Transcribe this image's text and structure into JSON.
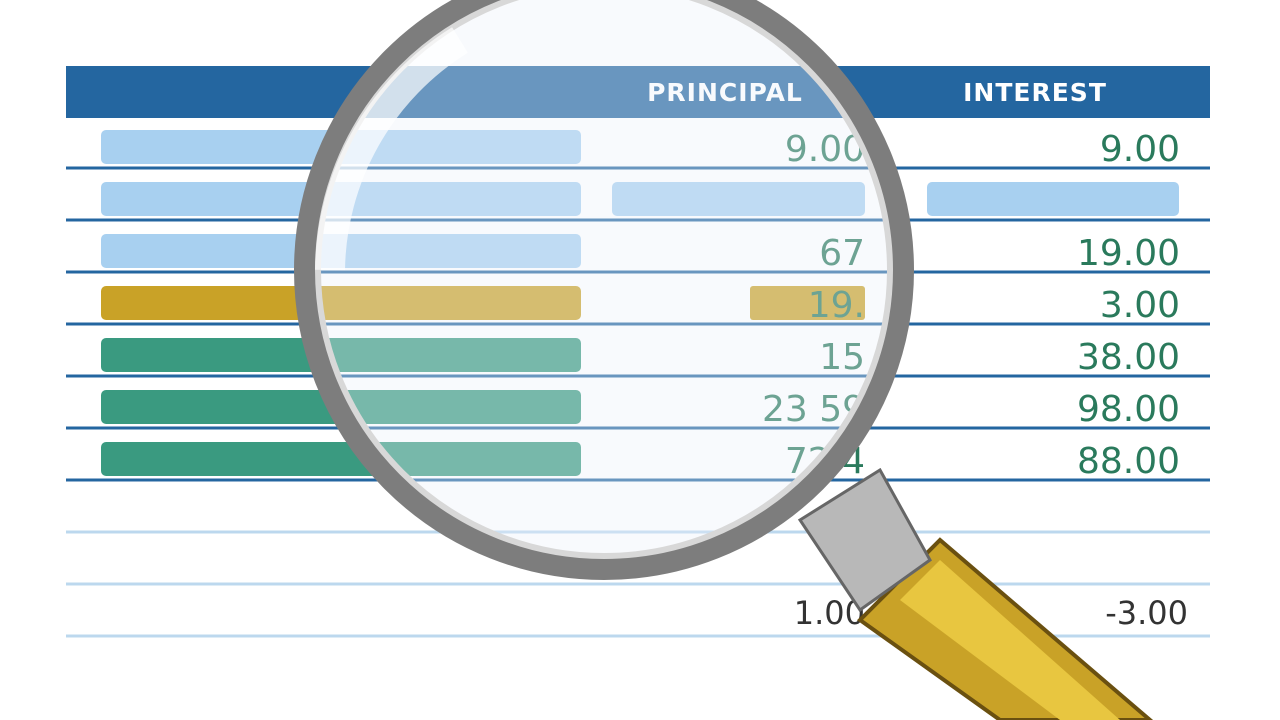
{
  "table": {
    "headers": [
      "PRINCIPAL",
      "INTEREST"
    ],
    "rows": [
      [
        "9.00",
        "9.00"
      ],
      [
        null,
        null
      ],
      [
        "67",
        "19.00"
      ],
      [
        "19.",
        "3.00"
      ],
      [
        "15",
        "38.00"
      ],
      [
        "23 59",
        "98.00"
      ],
      [
        "72 4",
        "88.00"
      ]
    ],
    "totals": [
      "1.00",
      "-3.00"
    ]
  }
}
